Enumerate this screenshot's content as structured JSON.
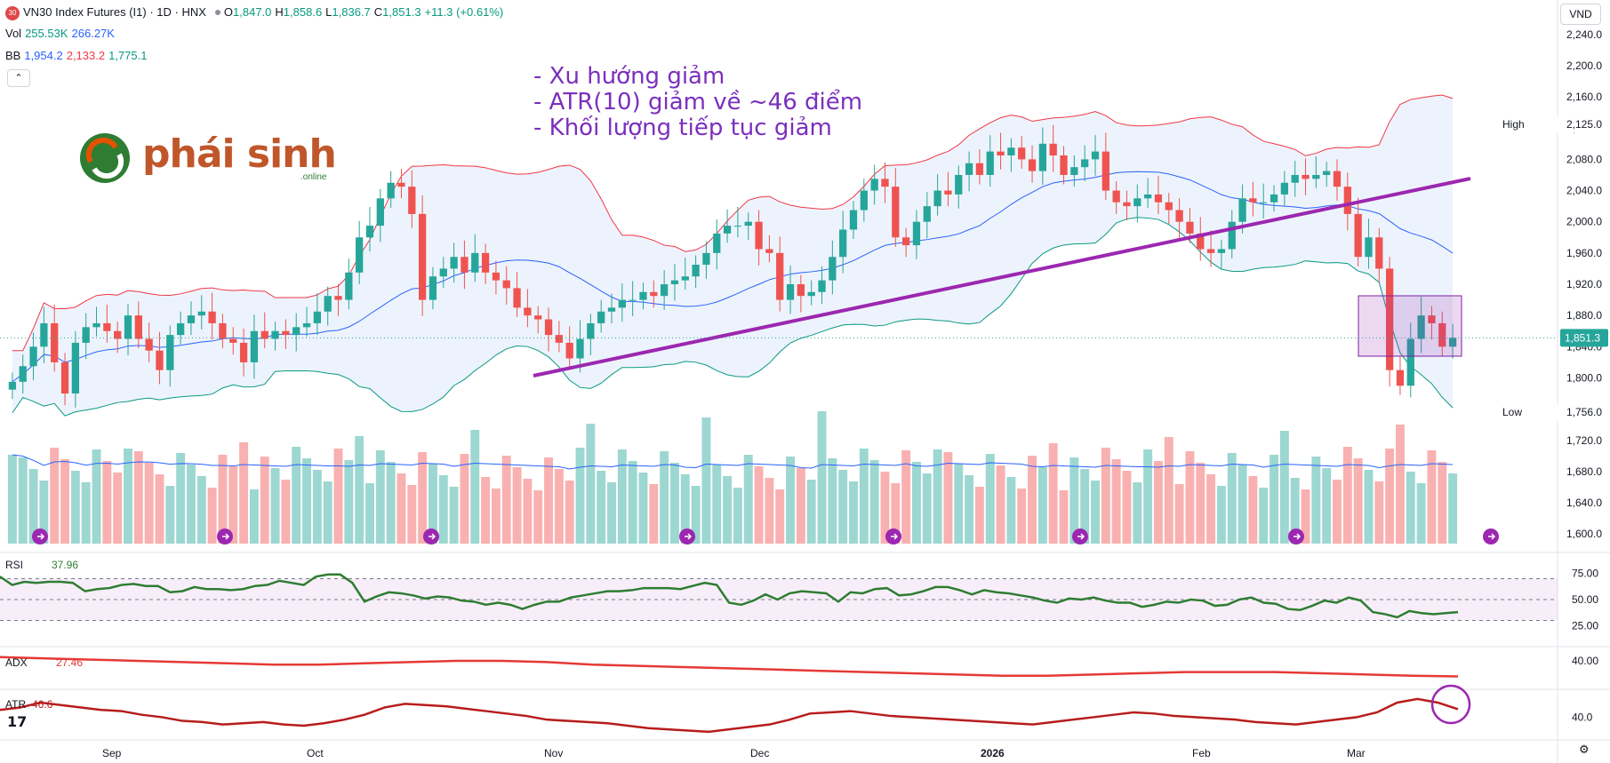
{
  "header": {
    "symbol_badge": "30",
    "title": "VN30 Index Futures (I1) · 1D · HNX",
    "ohlc": {
      "o_label": "O",
      "o": "1,847.0",
      "h_label": "H",
      "h": "1,858.6",
      "l_label": "L",
      "l": "1,836.7",
      "c_label": "C",
      "c": "1,851.3",
      "change": "+11.3 (+0.61%)"
    },
    "vol_label": "Vol",
    "vol_1": "255.53K",
    "vol_2": "266.27K",
    "bb_label": "BB",
    "bb_mid": "1,954.2",
    "bb_up": "2,133.2",
    "bb_low": "1,775.1",
    "collapse_icon": "chevron-up-icon",
    "currency": "VND"
  },
  "annotations": {
    "line1": "- Xu hướng giảm",
    "line2": "- ATR(10) giảm về ~46 điểm",
    "line3": "- Khối lượng tiếp tục giảm"
  },
  "logo": {
    "text": "phái sinh",
    "sub": ".online"
  },
  "price_axis": {
    "ticks": [
      "2,240.0",
      "2,200.0",
      "2,160.0",
      "2,120.0",
      "2,080.0",
      "2,040.0",
      "2,000.0",
      "1,960.0",
      "1,920.0",
      "1,880.0",
      "1,840.0",
      "1,800.0",
      "1,760.0",
      "1,720.0",
      "1,680.0",
      "1,640.0",
      "1,600.0"
    ],
    "high_label": "High",
    "high_value": "2,125.0",
    "low_label": "Low",
    "low_value": "1,756.0",
    "last_value": "1,851.3"
  },
  "rsi": {
    "label": "RSI",
    "value": "37.96",
    "ticks": [
      "75.00",
      "50.00",
      "25.00"
    ]
  },
  "adx": {
    "label": "ADX",
    "value": "27.46",
    "tick": "40.00"
  },
  "atr": {
    "label": "ATR",
    "value": "46.6",
    "tick": "40.0"
  },
  "time_axis": [
    "Sep",
    "Oct",
    "Nov",
    "Dec",
    "2026",
    "Feb",
    "Mar"
  ],
  "colors": {
    "up": "#26a69a",
    "down": "#ef5350",
    "bb_band": "#e8f0fb",
    "bb_upper": "#f23645",
    "bb_mid": "#2962ff",
    "bb_lower": "#089981",
    "trendline": "#9c27b0",
    "rsi": "#2e7d32",
    "adx": "#e53935",
    "atr": "#b71c1c"
  },
  "chart_data": {
    "type": "candlestick",
    "close": [
      1795,
      1815,
      1840,
      1870,
      1820,
      1780,
      1845,
      1865,
      1870,
      1860,
      1850,
      1880,
      1850,
      1835,
      1810,
      1855,
      1870,
      1880,
      1885,
      1870,
      1850,
      1845,
      1820,
      1860,
      1850,
      1860,
      1855,
      1865,
      1870,
      1885,
      1905,
      1900,
      1935,
      1980,
      1995,
      2030,
      2050,
      2045,
      2010,
      1900,
      1930,
      1940,
      1955,
      1935,
      1960,
      1935,
      1925,
      1915,
      1890,
      1880,
      1875,
      1855,
      1845,
      1825,
      1850,
      1870,
      1885,
      1890,
      1900,
      1900,
      1910,
      1905,
      1920,
      1925,
      1930,
      1945,
      1960,
      1985,
      1995,
      1995,
      2000,
      1965,
      1960,
      1900,
      1920,
      1905,
      1910,
      1925,
      1955,
      1990,
      2015,
      2040,
      2055,
      2045,
      1980,
      1970,
      2000,
      2020,
      2040,
      2035,
      2060,
      2075,
      2060,
      2090,
      2085,
      2095,
      2080,
      2065,
      2100,
      2085,
      2060,
      2070,
      2080,
      2090,
      2040,
      2025,
      2020,
      2030,
      2035,
      2025,
      2015,
      2000,
      1985,
      1965,
      1960,
      1965,
      2000,
      2030,
      2025,
      2025,
      2035,
      2050,
      2060,
      2055,
      2060,
      2065,
      2045,
      2010,
      1955,
      1980,
      1940,
      1810,
      1790,
      1850,
      1880,
      1870,
      1840,
      1851.3
    ],
    "volume_ma": "approx. 1,650–1,680 price-equivalent band",
    "bb_upper_range": [
      1800,
      2133.2
    ],
    "bb_lower_range": [
      1775.1,
      1990
    ],
    "price_ylim": [
      1590,
      2250
    ],
    "rsi_values": [
      72,
      64,
      67,
      66,
      67,
      67,
      66,
      58,
      60,
      61,
      64,
      65,
      63,
      63,
      57,
      58,
      62,
      60,
      60,
      59,
      60,
      63,
      64,
      68,
      66,
      64,
      72,
      74,
      74,
      66,
      48,
      53,
      57,
      56,
      54,
      51,
      53,
      52,
      49,
      48,
      45,
      47,
      45,
      41,
      45,
      48,
      48,
      52,
      54,
      56,
      58,
      58,
      59,
      61,
      61,
      61,
      60,
      63,
      66,
      64,
      47,
      45,
      49,
      55,
      50,
      56,
      58,
      57,
      56,
      48,
      57,
      56,
      60,
      61,
      54,
      55,
      58,
      62,
      62,
      59,
      55,
      59,
      57,
      56,
      54,
      52,
      49,
      47,
      51,
      50,
      52,
      49,
      47,
      47,
      43,
      45,
      48,
      47,
      50,
      49,
      44,
      45,
      50,
      52,
      47,
      46,
      41,
      40,
      44,
      49,
      47,
      52,
      49,
      38,
      36,
      33,
      39,
      37,
      36,
      37,
      38
    ],
    "rsi_ylim": [
      10,
      90
    ],
    "adx_values": [
      43,
      42,
      41,
      40,
      39,
      38,
      37,
      37,
      38,
      39,
      40,
      40,
      39,
      37,
      36,
      35,
      34,
      33,
      32,
      31,
      30,
      29,
      28,
      28,
      29,
      30,
      31,
      31,
      31,
      30,
      29,
      28,
      27.46
    ],
    "atr_values": [
      46,
      48,
      52,
      50,
      48,
      46,
      45,
      42,
      40,
      37,
      36,
      34,
      35,
      36,
      34,
      33,
      35,
      38,
      42,
      48,
      51,
      50,
      49,
      47,
      45,
      43,
      41,
      38,
      37,
      36,
      35,
      33,
      31,
      30,
      29,
      28,
      30,
      32,
      34,
      38,
      43,
      44,
      45,
      43,
      41,
      40,
      39,
      38,
      37,
      36,
      35,
      34,
      36,
      38,
      40,
      42,
      44,
      43,
      41,
      40,
      39,
      38,
      36,
      35,
      34,
      36,
      38,
      40,
      44,
      52,
      55,
      52,
      46.6
    ],
    "time_labels": [
      "Sep",
      "Oct",
      "Nov",
      "Dec",
      "2026",
      "Feb",
      "Mar"
    ]
  }
}
